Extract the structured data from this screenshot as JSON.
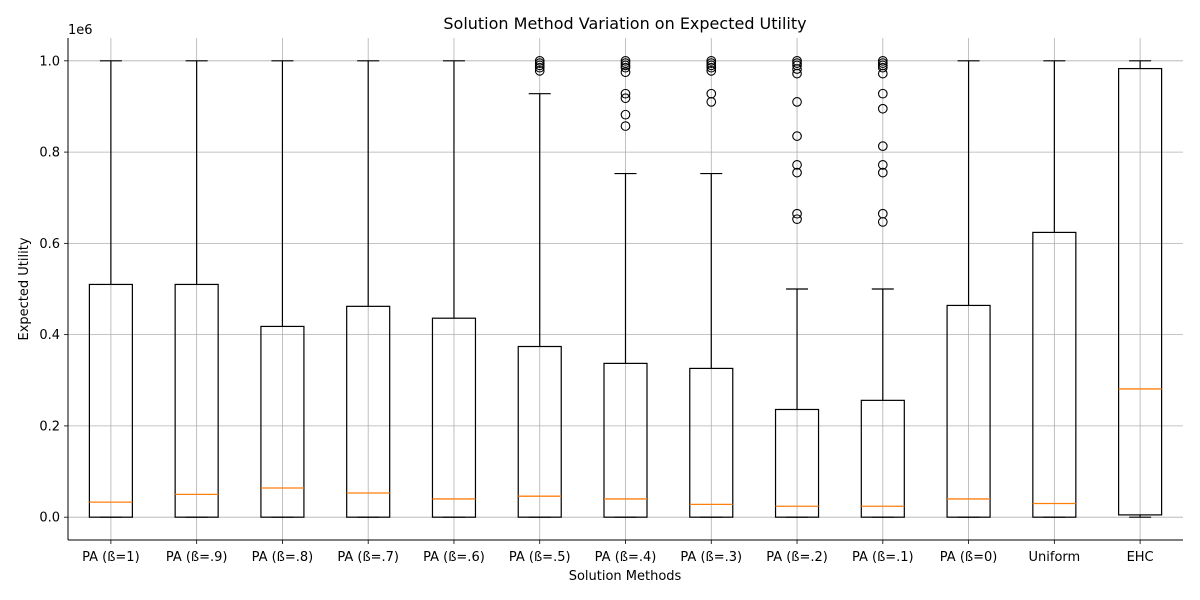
{
  "chart_data": {
    "type": "box",
    "title": "Solution Method Variation on Expected Utility",
    "xlabel": "Solution Methods",
    "ylabel": "Expected Utility",
    "y_scale_label": "1e6",
    "ylim": [
      -50000,
      1050000
    ],
    "yticks": [
      0,
      200000,
      400000,
      600000,
      800000,
      1000000
    ],
    "ytick_labels": [
      "0.0",
      "0.2",
      "0.4",
      "0.6",
      "0.8",
      "1.0"
    ],
    "grid": true,
    "colors": {
      "box": "#000000",
      "median": "#ff7f0e",
      "grid": "#b0b0b0"
    },
    "categories": [
      "PA (ß=1)",
      "PA (ß=.9)",
      "PA (ß=.8)",
      "PA (ß=.7)",
      "PA (ß=.6)",
      "PA (ß=.5)",
      "PA (ß=.4)",
      "PA (ß=.3)",
      "PA (ß=.2)",
      "PA (ß=.1)",
      "PA (ß=0)",
      "Uniform",
      "EHC"
    ],
    "boxes": [
      {
        "whisker_low": 0,
        "q1": 0,
        "median": 33000,
        "q3": 510000,
        "whisker_high": 1000000,
        "outliers": []
      },
      {
        "whisker_low": 0,
        "q1": 0,
        "median": 50000,
        "q3": 510000,
        "whisker_high": 1000000,
        "outliers": []
      },
      {
        "whisker_low": 0,
        "q1": 0,
        "median": 64000,
        "q3": 418000,
        "whisker_high": 1000000,
        "outliers": []
      },
      {
        "whisker_low": 0,
        "q1": 0,
        "median": 53000,
        "q3": 462000,
        "whisker_high": 1000000,
        "outliers": []
      },
      {
        "whisker_low": 0,
        "q1": 0,
        "median": 40000,
        "q3": 436000,
        "whisker_high": 1000000,
        "outliers": []
      },
      {
        "whisker_low": 0,
        "q1": 0,
        "median": 46000,
        "q3": 374000,
        "whisker_high": 928000,
        "outliers": [
          978000,
          985000,
          990000,
          995000,
          1000000
        ]
      },
      {
        "whisker_low": 0,
        "q1": 0,
        "median": 40000,
        "q3": 337000,
        "whisker_high": 753000,
        "outliers": [
          857000,
          882000,
          918000,
          928000,
          975000,
          985000,
          990000,
          995000,
          1000000
        ]
      },
      {
        "whisker_low": 0,
        "q1": 0,
        "median": 28000,
        "q3": 326000,
        "whisker_high": 753000,
        "outliers": [
          910000,
          928000,
          978000,
          985000,
          990000,
          995000,
          1000000
        ]
      },
      {
        "whisker_low": 0,
        "q1": 0,
        "median": 24000,
        "q3": 236000,
        "whisker_high": 500000,
        "outliers": [
          653000,
          665000,
          755000,
          772000,
          835000,
          910000,
          972000,
          982000,
          990000,
          995000,
          1000000
        ]
      },
      {
        "whisker_low": 0,
        "q1": 0,
        "median": 24000,
        "q3": 256000,
        "whisker_high": 500000,
        "outliers": [
          647000,
          665000,
          755000,
          772000,
          813000,
          895000,
          928000,
          972000,
          985000,
          990000,
          995000,
          1000000
        ]
      },
      {
        "whisker_low": 0,
        "q1": 0,
        "median": 40000,
        "q3": 464000,
        "whisker_high": 1000000,
        "outliers": []
      },
      {
        "whisker_low": 0,
        "q1": 0,
        "median": 30000,
        "q3": 624000,
        "whisker_high": 1000000,
        "outliers": []
      },
      {
        "whisker_low": 0,
        "q1": 5000,
        "median": 281000,
        "q3": 983000,
        "whisker_high": 1000000,
        "outliers": []
      }
    ]
  }
}
